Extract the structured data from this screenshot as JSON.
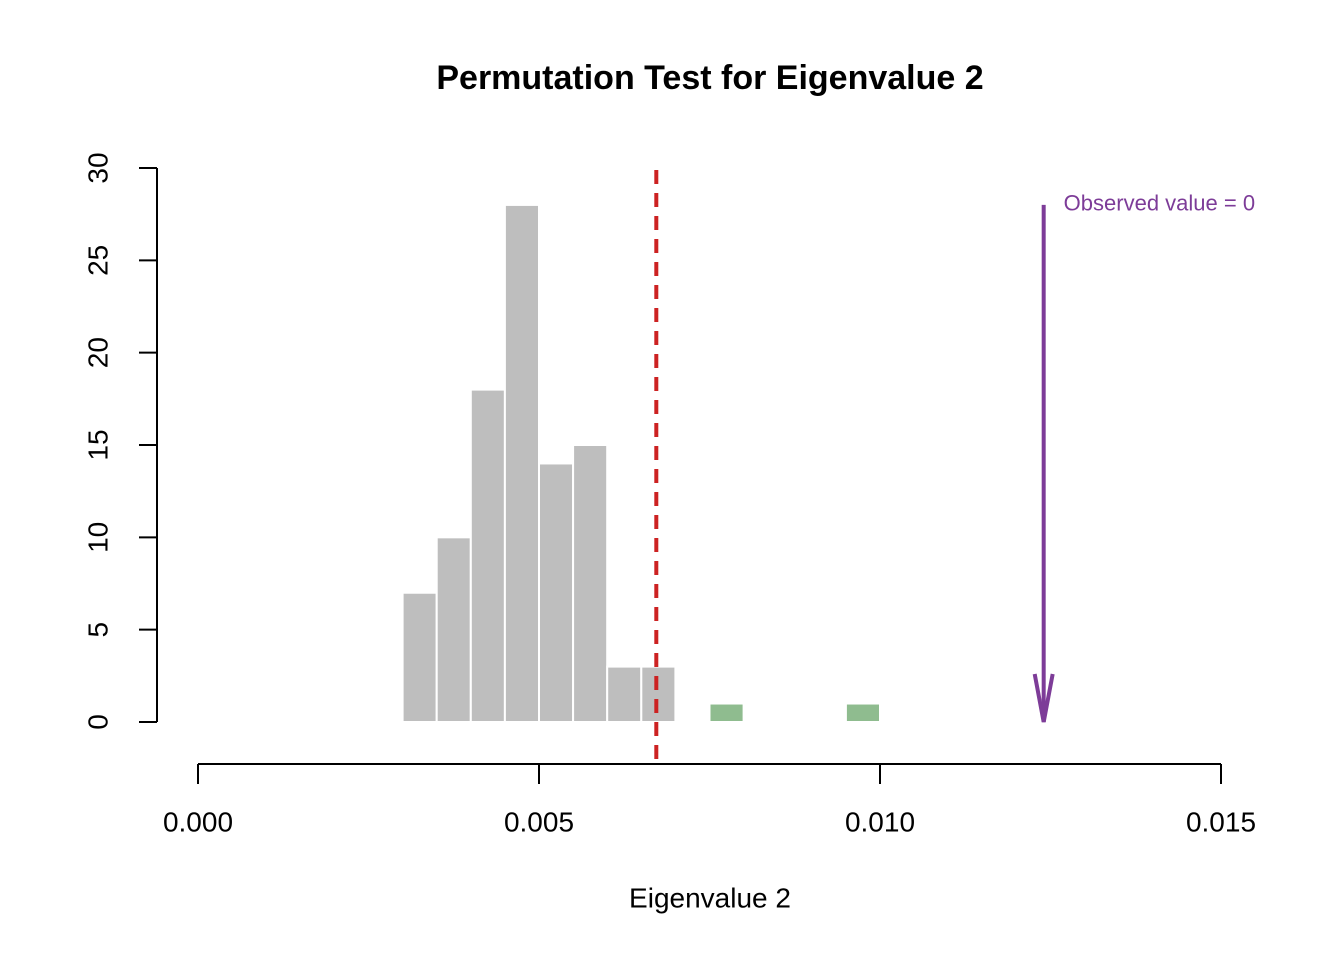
{
  "chart_data": {
    "type": "histogram",
    "title": "Permutation Test for Eigenvalue 2",
    "x_label": "Eigenvalue 2",
    "bins": [
      0.003,
      0.0035,
      0.004,
      0.0045,
      0.005,
      0.0055,
      0.006,
      0.0065,
      0.007,
      0.0075,
      0.008,
      0.0085,
      0.009,
      0.0095,
      0.01
    ],
    "counts": [
      7,
      10,
      18,
      28,
      14,
      15,
      3,
      3,
      0,
      1,
      0,
      0,
      0,
      1
    ],
    "colors": [
      "#bebebe",
      "#bebebe",
      "#bebebe",
      "#bebebe",
      "#bebebe",
      "#bebebe",
      "#bebebe",
      "#bebebe",
      "#8fbc8f",
      "#8fbc8f",
      "#8fbc8f",
      "#8fbc8f",
      "#8fbc8f",
      "#8fbc8f"
    ],
    "xlim": [
      0,
      0.015
    ],
    "xticks": [
      {
        "value": 0,
        "label": "0.000"
      },
      {
        "value": 0.005,
        "label": "0.005"
      },
      {
        "value": 0.01,
        "label": "0.010"
      },
      {
        "value": 0.015,
        "label": "0.015"
      }
    ],
    "ylim": [
      0,
      30
    ],
    "yticks": [
      0,
      5,
      10,
      15,
      20,
      25,
      30
    ],
    "threshold": {
      "value": 0.00672,
      "color": "#cc2222"
    },
    "observed": {
      "value": 0.0124,
      "arrow_top": 28,
      "label": "Observed value = 0",
      "color": "#7d3c98"
    }
  }
}
